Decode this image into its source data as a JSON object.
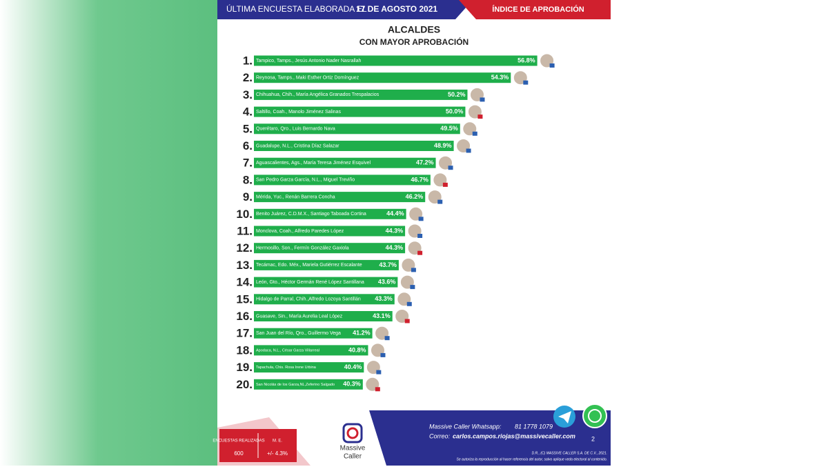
{
  "header": {
    "survey_label": "ÚLTIMA ENCUESTA ELABORADA EL",
    "date": "17 DE AGOSTO 2021",
    "index_label": "ÍNDICE DE APROBACIÓN"
  },
  "chart_data": {
    "type": "bar",
    "orientation": "horizontal",
    "title": "ALCALDES",
    "subtitle": "CON MAYOR APROBACIÓN",
    "ranks": [
      "1.",
      "2.",
      "3.",
      "4.",
      "5.",
      "6.",
      "7.",
      "8.",
      "9.",
      "10.",
      "11.",
      "12.",
      "13.",
      "14.",
      "15.",
      "16.",
      "17.",
      "18.",
      "19.",
      "20."
    ],
    "categories": [
      "Tampico, Tamps., Jesús Antonio Nader Nasrallah",
      "Reynosa, Tamps., Maki Esther Ortiz Domínguez",
      "Chihuahua, Chih., María Angélica Granados Trespalacios",
      "Saltillo, Coah., Manolo Jiménez Salinas",
      "Querétaro, Qro., Luis Bernardo Nava",
      "Guadalupe, N.L., Cristina Díaz Salazar",
      "Aguascalientes, Ags., María Teresa Jiménez Esquivel",
      "San Pedro Garza García, N.L., Miguel Treviño",
      "Mérida, Yuc., Renán Barrera Concha",
      "Benito Juárez, C.D.M.X., Santiago Taboada Cortina",
      "Monclova, Coah., Alfredo Paredes López",
      "Hermosillo, Son., Fermín González Gaxiola",
      "Tecámac, Edo. Méx., Mariela Gutiérrez Escalante",
      "León, Gto., Héctor Germán René López Santillana",
      "Hidalgo de Parral, Chih.,Alfredo Lozoya Santillán",
      "Guasave, Sin., María Aurelia Leal López",
      "San Juan del Río, Qro., Guillermo Vega",
      "Apodaca, N.L., César Garza Villarreal",
      "Tapachula, Chis. Rosa Irene Urbina",
      "San Nicolás de los Garza,NL,Zeferino Salgado"
    ],
    "values": [
      56.8,
      54.3,
      50.2,
      50.0,
      49.5,
      48.9,
      47.2,
      46.7,
      46.2,
      44.4,
      44.3,
      44.3,
      43.7,
      43.6,
      43.3,
      43.1,
      41.2,
      40.8,
      40.4,
      40.3
    ],
    "value_labels": [
      "56.8%",
      "54.3%",
      "50.2%",
      "50.0%",
      "49.5%",
      "48.9%",
      "47.2%",
      "46.7%",
      "46.2%",
      "44.4%",
      "44.3%",
      "44.3%",
      "43.7%",
      "43.6%",
      "43.3%",
      "43.1%",
      "41.2%",
      "40.8%",
      "40.4%",
      "40.3%"
    ],
    "color": "#1fae4b",
    "xlim": [
      30,
      58
    ]
  },
  "survey_box": {
    "surveys_label": "ENCUESTAS REALIZADAS",
    "margin_label": "M. E.",
    "surveys": "600",
    "margin": "+/- 4.3%"
  },
  "logo": {
    "line1": "Massive",
    "line2": "Caller"
  },
  "footer": {
    "whatsapp_label": "Massive Caller Whatsapp:",
    "whatsapp": "81 1778 1079",
    "email_label": "Correo:",
    "email": "carlos.campos.riojas@massivecaller.com",
    "page": "2",
    "copyright": "D.R., (C) MASSIVE CALLER S.A. DE C.V., 2021.",
    "notice": "Se autoriza la reproducción al hacer referencia del autor, salvo aplique veda electoral al contenido."
  }
}
